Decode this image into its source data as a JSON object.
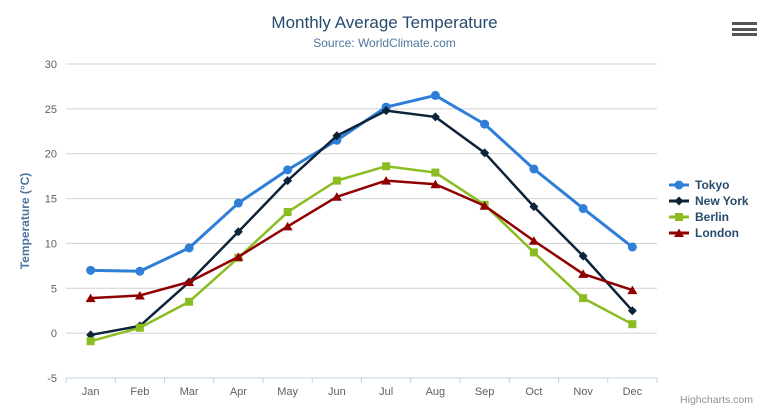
{
  "chart": {
    "title": "Monthly Average Temperature",
    "subtitle": "Source: WorldClimate.com",
    "credit": "Highcharts.com",
    "menu_icon": "hamburger-icon"
  },
  "chart_data": {
    "type": "line",
    "title": "Monthly Average Temperature",
    "subtitle": "Source: WorldClimate.com",
    "categories": [
      "Jan",
      "Feb",
      "Mar",
      "Apr",
      "May",
      "Jun",
      "Jul",
      "Aug",
      "Sep",
      "Oct",
      "Nov",
      "Dec"
    ],
    "series": [
      {
        "name": "Tokyo",
        "color": "#2f7ed8",
        "marker": "circle",
        "values": [
          7.0,
          6.9,
          9.5,
          14.5,
          18.2,
          21.5,
          25.2,
          26.5,
          23.3,
          18.3,
          13.9,
          9.6
        ]
      },
      {
        "name": "New York",
        "color": "#0d233a",
        "marker": "diamond",
        "values": [
          -0.2,
          0.8,
          5.7,
          11.3,
          17.0,
          22.0,
          24.8,
          24.1,
          20.1,
          14.1,
          8.6,
          2.5
        ]
      },
      {
        "name": "Berlin",
        "color": "#8bbc21",
        "marker": "square",
        "values": [
          -0.9,
          0.6,
          3.5,
          8.4,
          13.5,
          17.0,
          18.6,
          17.9,
          14.3,
          9.0,
          3.9,
          1.0
        ]
      },
      {
        "name": "London",
        "color": "#910000",
        "marker": "triangle",
        "values": [
          3.9,
          4.2,
          5.7,
          8.5,
          11.9,
          15.2,
          17.0,
          16.6,
          14.2,
          10.3,
          6.6,
          4.8
        ]
      }
    ],
    "xlabel": "",
    "ylabel": "Temperature (°C)",
    "ylim": [
      -5,
      30
    ],
    "ytick_step": 5,
    "yticks": [
      -5,
      0,
      5,
      10,
      15,
      20,
      25,
      30
    ],
    "grid": true,
    "legend_position": "right"
  },
  "colors": {
    "title_text": "#274b6d",
    "subtitle_text": "#4d759e",
    "axis_title_text": "#4d759e",
    "tick_label_text": "#606060",
    "legend_text": "#274b6d",
    "grid_line": "#d0d0d0",
    "axis_line": "#c0d0e0",
    "credit_text": "#909090",
    "menu_icon_color": "#555555",
    "background": "#ffffff"
  }
}
